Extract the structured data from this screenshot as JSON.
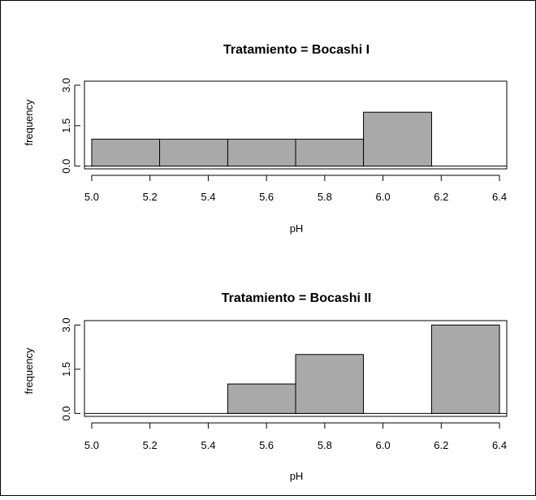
{
  "chart_data": [
    {
      "type": "bar",
      "title": "Tratamiento = Bocashi I",
      "xlabel": "pH",
      "ylabel": "frequency",
      "bins": [
        [
          5.0,
          5.233
        ],
        [
          5.233,
          5.467
        ],
        [
          5.467,
          5.7
        ],
        [
          5.7,
          5.933
        ],
        [
          5.933,
          6.167
        ],
        [
          6.167,
          6.4
        ]
      ],
      "values": [
        1,
        1,
        1,
        1,
        2,
        0
      ],
      "xticks": [
        "5.0",
        "5.2",
        "5.4",
        "5.6",
        "5.8",
        "6.0",
        "6.2",
        "6.4"
      ],
      "xtick_values": [
        5.0,
        5.2,
        5.4,
        5.6,
        5.8,
        6.0,
        6.2,
        6.4
      ],
      "yticks": [
        "0.0",
        "1.5",
        "3.0"
      ],
      "ytick_values": [
        0,
        1.5,
        3.0
      ],
      "xlim": [
        4.975,
        6.425
      ],
      "ylim": [
        -0.1,
        3.15
      ],
      "bar_color": "#a9a9a9",
      "grid": false
    },
    {
      "type": "bar",
      "title": "Tratamiento = Bocashi II",
      "xlabel": "pH",
      "ylabel": "frequency",
      "bins": [
        [
          5.0,
          5.233
        ],
        [
          5.233,
          5.467
        ],
        [
          5.467,
          5.7
        ],
        [
          5.7,
          5.933
        ],
        [
          5.933,
          6.167
        ],
        [
          6.167,
          6.4
        ]
      ],
      "values": [
        0,
        0,
        1,
        2,
        0,
        3
      ],
      "xticks": [
        "5.0",
        "5.2",
        "5.4",
        "5.6",
        "5.8",
        "6.0",
        "6.2",
        "6.4"
      ],
      "xtick_values": [
        5.0,
        5.2,
        5.4,
        5.6,
        5.8,
        6.0,
        6.2,
        6.4
      ],
      "yticks": [
        "0.0",
        "1.5",
        "3.0"
      ],
      "ytick_values": [
        0,
        1.5,
        3.0
      ],
      "xlim": [
        4.975,
        6.425
      ],
      "ylim": [
        -0.1,
        3.15
      ],
      "bar_color": "#a9a9a9",
      "grid": false
    }
  ]
}
